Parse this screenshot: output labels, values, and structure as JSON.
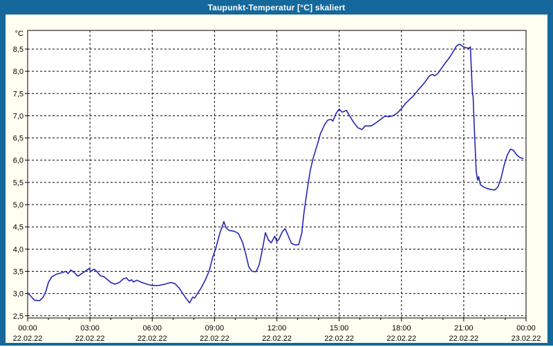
{
  "window": {
    "title": "Taupunkt-Temperatur [°C] skaliert"
  },
  "colors": {
    "frame": "#15689b",
    "background": "#fffff2",
    "plot_background": "#ffffff",
    "line": "#2323b4",
    "grid": "#000000",
    "text": "#000000",
    "title_text": "#ffffff"
  },
  "chart_data": {
    "type": "line",
    "title": "Taupunkt-Temperatur [°C] skaliert",
    "xlabel": "",
    "ylabel": "°C",
    "legend": "none",
    "grid": "dashed",
    "xlim_hours": [
      0,
      24
    ],
    "ylim": [
      2.45,
      8.92
    ],
    "y_ticks": [
      {
        "label": "2,5",
        "value": 2.5
      },
      {
        "label": "3,0",
        "value": 3.0
      },
      {
        "label": "3,5",
        "value": 3.5
      },
      {
        "label": "4,0",
        "value": 4.0
      },
      {
        "label": "4,5",
        "value": 4.5
      },
      {
        "label": "5,0",
        "value": 5.0
      },
      {
        "label": "5,5",
        "value": 5.5
      },
      {
        "label": "6,0",
        "value": 6.0
      },
      {
        "label": "6,5",
        "value": 6.5
      },
      {
        "label": "7,0",
        "value": 7.0
      },
      {
        "label": "7,5",
        "value": 7.5
      },
      {
        "label": "8,0",
        "value": 8.0
      },
      {
        "label": "8,5",
        "value": 8.5
      }
    ],
    "x_ticks": [
      {
        "hour": 0,
        "time": "00:00",
        "date": "22.02.22"
      },
      {
        "hour": 3,
        "time": "03:00",
        "date": "22.02.22"
      },
      {
        "hour": 6,
        "time": "06:00",
        "date": "22.02.22"
      },
      {
        "hour": 9,
        "time": "09:00",
        "date": "22.02.22"
      },
      {
        "hour": 12,
        "time": "12:00",
        "date": "22.02.22"
      },
      {
        "hour": 15,
        "time": "15:00",
        "date": "22.02.22"
      },
      {
        "hour": 18,
        "time": "18:00",
        "date": "22.02.22"
      },
      {
        "hour": 21,
        "time": "21:00",
        "date": "22.02.22"
      },
      {
        "hour": 24,
        "time": "00:00",
        "date": "23.02.22"
      }
    ],
    "minor_x_tick_every_hours": 1,
    "series": [
      {
        "name": "Taupunkt-Temperatur",
        "unit": "°C",
        "color": "#2323b4",
        "points_hour_value": [
          [
            0.0,
            3.02
          ],
          [
            0.17,
            2.93
          ],
          [
            0.33,
            2.85
          ],
          [
            0.58,
            2.84
          ],
          [
            0.75,
            2.92
          ],
          [
            0.88,
            3.05
          ],
          [
            1.0,
            3.25
          ],
          [
            1.17,
            3.38
          ],
          [
            1.42,
            3.44
          ],
          [
            1.67,
            3.47
          ],
          [
            1.83,
            3.5
          ],
          [
            1.95,
            3.45
          ],
          [
            2.08,
            3.53
          ],
          [
            2.25,
            3.47
          ],
          [
            2.42,
            3.39
          ],
          [
            2.58,
            3.44
          ],
          [
            2.83,
            3.52
          ],
          [
            2.95,
            3.56
          ],
          [
            3.05,
            3.5
          ],
          [
            3.2,
            3.55
          ],
          [
            3.35,
            3.49
          ],
          [
            3.5,
            3.4
          ],
          [
            3.67,
            3.38
          ],
          [
            3.85,
            3.31
          ],
          [
            4.0,
            3.25
          ],
          [
            4.2,
            3.21
          ],
          [
            4.42,
            3.25
          ],
          [
            4.6,
            3.33
          ],
          [
            4.75,
            3.35
          ],
          [
            4.9,
            3.28
          ],
          [
            5.0,
            3.31
          ],
          [
            5.1,
            3.26
          ],
          [
            5.25,
            3.3
          ],
          [
            5.5,
            3.25
          ],
          [
            5.75,
            3.21
          ],
          [
            6.0,
            3.18
          ],
          [
            6.3,
            3.18
          ],
          [
            6.6,
            3.21
          ],
          [
            6.9,
            3.25
          ],
          [
            7.1,
            3.22
          ],
          [
            7.3,
            3.12
          ],
          [
            7.5,
            2.98
          ],
          [
            7.65,
            2.88
          ],
          [
            7.8,
            2.79
          ],
          [
            7.95,
            2.92
          ],
          [
            8.05,
            2.9
          ],
          [
            8.15,
            2.98
          ],
          [
            8.35,
            3.12
          ],
          [
            8.55,
            3.3
          ],
          [
            8.75,
            3.52
          ],
          [
            8.9,
            3.8
          ],
          [
            9.05,
            4.0
          ],
          [
            9.25,
            4.35
          ],
          [
            9.45,
            4.62
          ],
          [
            9.55,
            4.48
          ],
          [
            9.7,
            4.42
          ],
          [
            9.95,
            4.4
          ],
          [
            10.15,
            4.35
          ],
          [
            10.35,
            4.15
          ],
          [
            10.5,
            3.9
          ],
          [
            10.65,
            3.6
          ],
          [
            10.8,
            3.5
          ],
          [
            11.0,
            3.49
          ],
          [
            11.15,
            3.65
          ],
          [
            11.3,
            3.98
          ],
          [
            11.45,
            4.37
          ],
          [
            11.6,
            4.2
          ],
          [
            11.73,
            4.14
          ],
          [
            11.9,
            4.29
          ],
          [
            12.0,
            4.17
          ],
          [
            12.1,
            4.22
          ],
          [
            12.25,
            4.38
          ],
          [
            12.4,
            4.46
          ],
          [
            12.55,
            4.3
          ],
          [
            12.7,
            4.13
          ],
          [
            12.9,
            4.09
          ],
          [
            13.05,
            4.1
          ],
          [
            13.2,
            4.35
          ],
          [
            13.3,
            4.8
          ],
          [
            13.45,
            5.3
          ],
          [
            13.6,
            5.75
          ],
          [
            13.75,
            6.05
          ],
          [
            13.95,
            6.35
          ],
          [
            14.1,
            6.6
          ],
          [
            14.3,
            6.8
          ],
          [
            14.45,
            6.9
          ],
          [
            14.6,
            6.92
          ],
          [
            14.7,
            6.88
          ],
          [
            14.85,
            7.05
          ],
          [
            15.0,
            7.15
          ],
          [
            15.15,
            7.08
          ],
          [
            15.35,
            7.12
          ],
          [
            15.5,
            7.0
          ],
          [
            15.7,
            6.85
          ],
          [
            15.9,
            6.73
          ],
          [
            16.1,
            6.69
          ],
          [
            16.25,
            6.77
          ],
          [
            16.55,
            6.77
          ],
          [
            16.8,
            6.85
          ],
          [
            17.0,
            6.92
          ],
          [
            17.2,
            6.99
          ],
          [
            17.4,
            6.98
          ],
          [
            17.6,
            7.0
          ],
          [
            17.8,
            7.06
          ],
          [
            18.0,
            7.16
          ],
          [
            18.2,
            7.28
          ],
          [
            18.4,
            7.37
          ],
          [
            18.6,
            7.46
          ],
          [
            18.8,
            7.58
          ],
          [
            19.0,
            7.68
          ],
          [
            19.2,
            7.8
          ],
          [
            19.35,
            7.9
          ],
          [
            19.5,
            7.93
          ],
          [
            19.6,
            7.9
          ],
          [
            19.75,
            7.95
          ],
          [
            19.9,
            8.05
          ],
          [
            20.1,
            8.18
          ],
          [
            20.3,
            8.3
          ],
          [
            20.5,
            8.45
          ],
          [
            20.65,
            8.57
          ],
          [
            20.8,
            8.61
          ],
          [
            20.95,
            8.56
          ],
          [
            21.1,
            8.53
          ],
          [
            21.25,
            8.52
          ],
          [
            21.32,
            8.55
          ],
          [
            21.37,
            8.0
          ],
          [
            21.42,
            7.5
          ],
          [
            21.45,
            7.44
          ],
          [
            21.52,
            6.6
          ],
          [
            21.6,
            5.75
          ],
          [
            21.67,
            5.55
          ],
          [
            21.72,
            5.63
          ],
          [
            21.8,
            5.45
          ],
          [
            21.95,
            5.4
          ],
          [
            22.1,
            5.37
          ],
          [
            22.3,
            5.34
          ],
          [
            22.5,
            5.33
          ],
          [
            22.65,
            5.4
          ],
          [
            22.8,
            5.6
          ],
          [
            22.95,
            5.9
          ],
          [
            23.1,
            6.12
          ],
          [
            23.25,
            6.25
          ],
          [
            23.4,
            6.22
          ],
          [
            23.55,
            6.12
          ],
          [
            23.7,
            6.06
          ],
          [
            23.85,
            6.04
          ]
        ]
      }
    ]
  }
}
